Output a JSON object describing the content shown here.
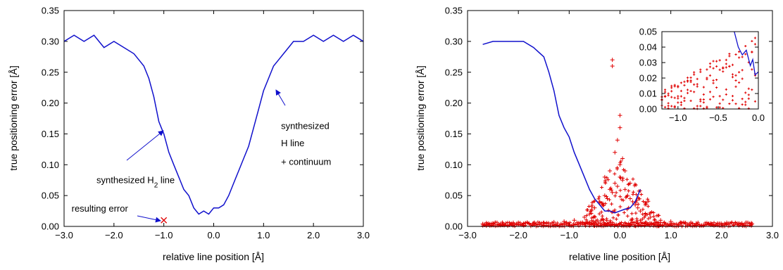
{
  "colors": {
    "line": "#1010cc",
    "points": "#e00000",
    "marker": "#e00000",
    "axis": "#000000"
  },
  "chart_data": [
    {
      "type": "line",
      "xlabel": "relative line position [Å]",
      "ylabel": "true positioning error [Å]",
      "xlim": [
        -3.0,
        3.0
      ],
      "ylim": [
        0.0,
        0.35
      ],
      "xticks": [
        "−3.0",
        "−2.0",
        "−1.0",
        "0.0",
        "1.0",
        "2.0",
        "3.0"
      ],
      "yticks": [
        "0.00",
        "0.05",
        "0.10",
        "0.15",
        "0.20",
        "0.25",
        "0.30",
        "0.35"
      ],
      "grid": false,
      "series": [
        {
          "style": "line",
          "x": [
            -3.0,
            -2.8,
            -2.6,
            -2.4,
            -2.2,
            -2.0,
            -1.8,
            -1.6,
            -1.5,
            -1.4,
            -1.3,
            -1.2,
            -1.1,
            -1.05,
            -1.0,
            -0.9,
            -0.8,
            -0.7,
            -0.6,
            -0.5,
            -0.4,
            -0.3,
            -0.2,
            -0.1,
            0.0,
            0.1,
            0.2,
            0.3,
            0.4,
            0.5,
            0.6,
            0.7,
            0.8,
            0.9,
            1.0,
            1.1,
            1.2,
            1.3,
            1.4,
            1.5,
            1.6,
            1.8,
            2.0,
            2.2,
            2.4,
            2.6,
            2.8,
            3.0
          ],
          "y": [
            0.3,
            0.31,
            0.3,
            0.31,
            0.29,
            0.3,
            0.29,
            0.28,
            0.27,
            0.26,
            0.24,
            0.21,
            0.17,
            0.16,
            0.15,
            0.12,
            0.1,
            0.08,
            0.06,
            0.05,
            0.03,
            0.02,
            0.025,
            0.02,
            0.03,
            0.03,
            0.035,
            0.05,
            0.07,
            0.09,
            0.11,
            0.13,
            0.16,
            0.19,
            0.22,
            0.24,
            0.26,
            0.27,
            0.28,
            0.29,
            0.3,
            0.3,
            0.31,
            0.3,
            0.31,
            0.3,
            0.31,
            0.3
          ]
        }
      ],
      "annotations": [
        {
          "text": "synthesized",
          "x": 1.35,
          "y": 0.158
        },
        {
          "text": "H line",
          "x": 1.35,
          "y": 0.13
        },
        {
          "text": "+ continuum",
          "x": 1.35,
          "y": 0.1
        },
        {
          "text": "synthesized H",
          "sub": "2",
          "after": " line",
          "x": -2.35,
          "y": 0.07
        },
        {
          "text": "resulting error",
          "x": -2.85,
          "y": 0.024
        }
      ],
      "marker": {
        "x": -1.0,
        "y": 0.01
      }
    },
    {
      "type": "scatter",
      "xlabel": "relative line position [Å]",
      "ylabel": "true positioning error [Å]",
      "xlim": [
        -3.0,
        3.0
      ],
      "ylim": [
        0.0,
        0.35
      ],
      "xticks": [
        "−3.0",
        "−2.0",
        "−1.0",
        "0.0",
        "1.0",
        "2.0",
        "3.0"
      ],
      "yticks": [
        "0.00",
        "0.05",
        "0.10",
        "0.15",
        "0.20",
        "0.25",
        "0.30",
        "0.35"
      ],
      "grid": false,
      "series": [
        {
          "style": "line",
          "x": [
            -2.7,
            -2.5,
            -2.3,
            -2.1,
            -1.9,
            -1.7,
            -1.5,
            -1.4,
            -1.3,
            -1.2,
            -1.1,
            -1.0,
            -0.9,
            -0.8,
            -0.7,
            -0.6,
            -0.5,
            -0.4,
            -0.3,
            -0.2,
            -0.1,
            0.0,
            0.1,
            0.2,
            0.3,
            0.4
          ],
          "y": [
            0.295,
            0.3,
            0.3,
            0.3,
            0.3,
            0.29,
            0.275,
            0.25,
            0.22,
            0.18,
            0.16,
            0.145,
            0.12,
            0.1,
            0.08,
            0.06,
            0.045,
            0.035,
            0.025,
            0.025,
            0.022,
            0.025,
            0.028,
            0.03,
            0.04,
            0.06
          ]
        },
        {
          "style": "points",
          "x": [
            -2.7,
            -2.5,
            -2.3,
            -2.1,
            -1.9,
            -1.7,
            -1.5,
            -1.3,
            -1.1,
            -0.9,
            -0.7,
            -0.6,
            -0.5,
            -0.4,
            -0.35,
            -0.3,
            -0.25,
            -0.2,
            -0.15,
            -0.1,
            -0.05,
            0.0,
            0.0,
            0.05,
            0.1,
            0.15,
            0.2,
            0.25,
            0.3,
            0.35,
            0.4,
            0.5,
            0.6,
            0.8,
            1.0,
            1.2,
            1.5,
            1.8,
            2.1,
            2.4,
            2.6,
            -0.1,
            -0.05,
            0.0,
            0.0,
            0.05,
            -0.2,
            0.1,
            -0.3,
            0.2,
            -0.15,
            -0.15
          ],
          "y": [
            0.004,
            0.005,
            0.003,
            0.006,
            0.004,
            0.005,
            0.006,
            0.007,
            0.008,
            0.01,
            0.015,
            0.02,
            0.03,
            0.04,
            0.035,
            0.05,
            0.045,
            0.06,
            0.055,
            0.07,
            0.065,
            0.08,
            0.1,
            0.075,
            0.06,
            0.05,
            0.045,
            0.04,
            0.035,
            0.03,
            0.025,
            0.02,
            0.015,
            0.01,
            0.008,
            0.006,
            0.005,
            0.004,
            0.006,
            0.005,
            0.004,
            0.12,
            0.14,
            0.16,
            0.18,
            0.11,
            0.09,
            0.09,
            0.08,
            0.07,
            0.26,
            0.27
          ]
        }
      ],
      "inset": {
        "xlim": [
          -1.2,
          0.0
        ],
        "ylim": [
          0.0,
          0.05
        ],
        "xticks": [
          "−1.0",
          "−0.5",
          "0.0"
        ],
        "yticks": [
          "0.00",
          "0.01",
          "0.02",
          "0.03",
          "0.04",
          "0.05"
        ]
      }
    }
  ]
}
